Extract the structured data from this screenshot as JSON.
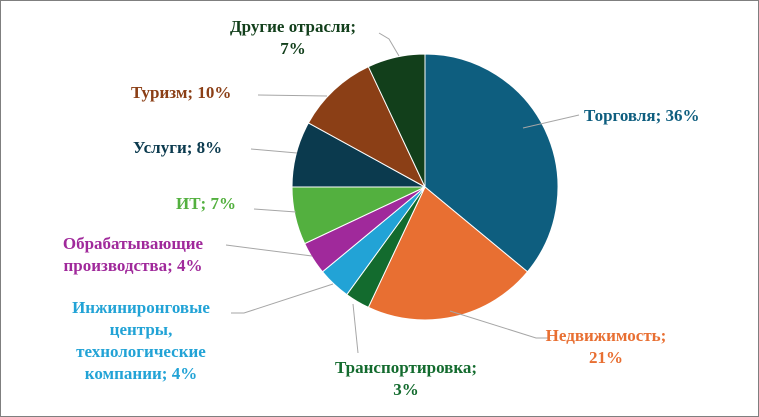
{
  "chart_data": {
    "type": "pie",
    "slices": [
      {
        "lines": [
          "Торговля; 36%"
        ],
        "value": 36,
        "color": "#0e5e7f"
      },
      {
        "lines": [
          "Недвижимость;",
          "21%"
        ],
        "value": 21,
        "color": "#e86f32"
      },
      {
        "lines": [
          "Транспортировка;",
          "3%"
        ],
        "value": 3,
        "color": "#136b2e"
      },
      {
        "lines": [
          "Инжиниронговые",
          "центры,",
          "технологические",
          "компании; 4%"
        ],
        "value": 4,
        "color": "#22a3d6"
      },
      {
        "lines": [
          "Обрабатывающие",
          "производства; 4%"
        ],
        "value": 4,
        "color": "#a0299b"
      },
      {
        "lines": [
          "ИТ; 7%"
        ],
        "value": 7,
        "color": "#53b03f"
      },
      {
        "lines": [
          "Услуги; 8%"
        ],
        "value": 8,
        "color": "#0b3a4e"
      },
      {
        "lines": [
          "Туризм; 10%"
        ],
        "value": 10,
        "color": "#8b3f16"
      },
      {
        "lines": [
          "Другие отрасли;",
          "7%"
        ],
        "value": 7,
        "color": "#123f1b"
      }
    ],
    "start_angle": "12 o'clock",
    "direction": "clockwise"
  }
}
